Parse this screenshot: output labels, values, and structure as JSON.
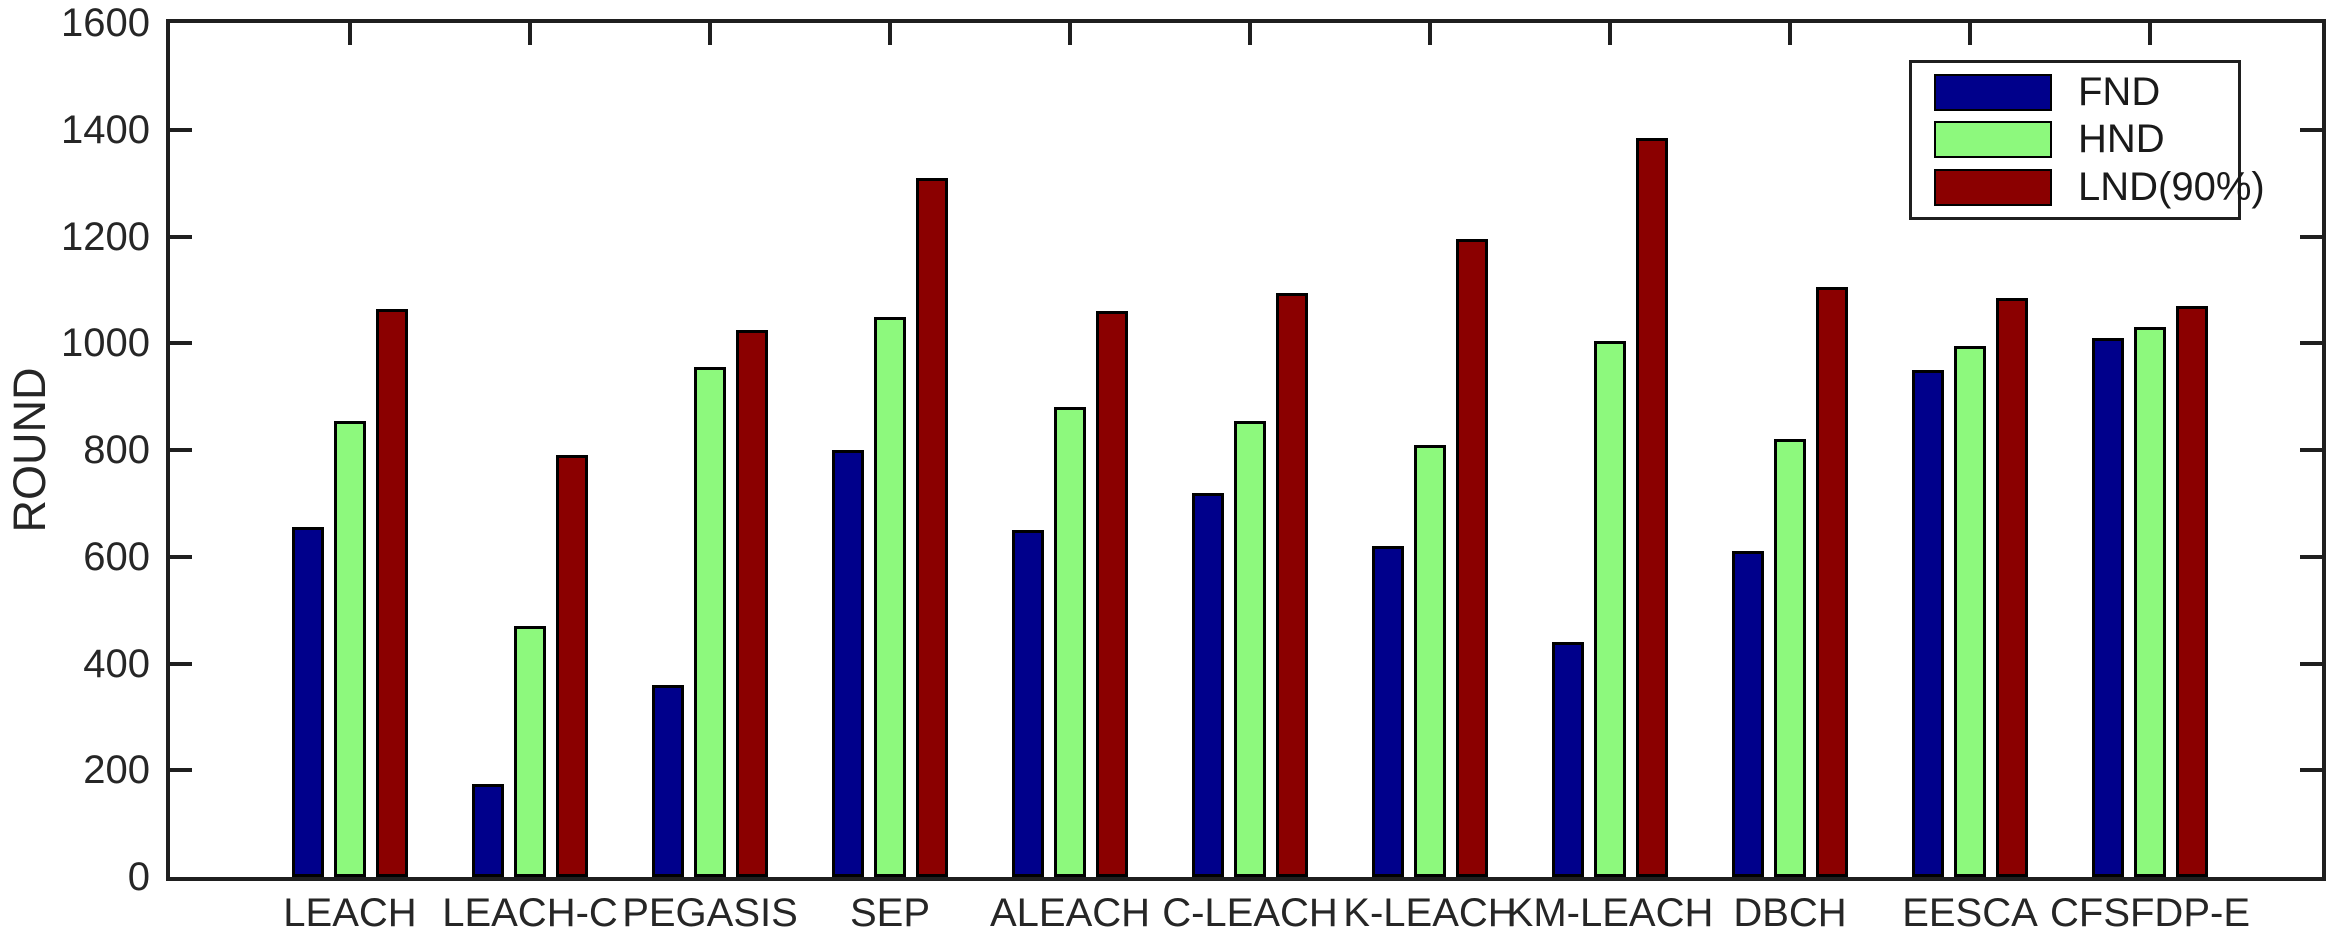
{
  "figure": {
    "background_color": "#ffffff",
    "axis_color": "#1f1f1f",
    "text_color": "#262626"
  },
  "chart_data": {
    "type": "bar",
    "title": "",
    "xlabel": "",
    "ylabel": "ROUND",
    "ylim": [
      0,
      1600
    ],
    "yticks": [
      0,
      200,
      400,
      600,
      800,
      1000,
      1200,
      1400,
      1600
    ],
    "grid": false,
    "box": true,
    "legend_position": "top-right",
    "bar_edge_color": "#000000",
    "categories": [
      "LEACH",
      "LEACH-C",
      "PEGASIS",
      "SEP",
      "ALEACH",
      "C-LEACH",
      "K-LEACH",
      "KM-LEACH",
      "DBCH",
      "EESCA",
      "CFSFDP-E"
    ],
    "series": [
      {
        "name": "FND",
        "color": "#00008B",
        "values": [
          655,
          175,
          360,
          800,
          650,
          720,
          620,
          440,
          610,
          950,
          1010
        ]
      },
      {
        "name": "HND",
        "color": "#8DF97D",
        "values": [
          855,
          470,
          955,
          1050,
          880,
          855,
          810,
          1005,
          820,
          995,
          1030
        ]
      },
      {
        "name": "LND(90%)",
        "color": "#8B0000",
        "values": [
          1065,
          790,
          1025,
          1310,
          1060,
          1095,
          1195,
          1385,
          1105,
          1085,
          1070
        ]
      }
    ]
  },
  "legend": {
    "items": [
      "FND",
      "HND",
      "LND(90%)"
    ]
  }
}
